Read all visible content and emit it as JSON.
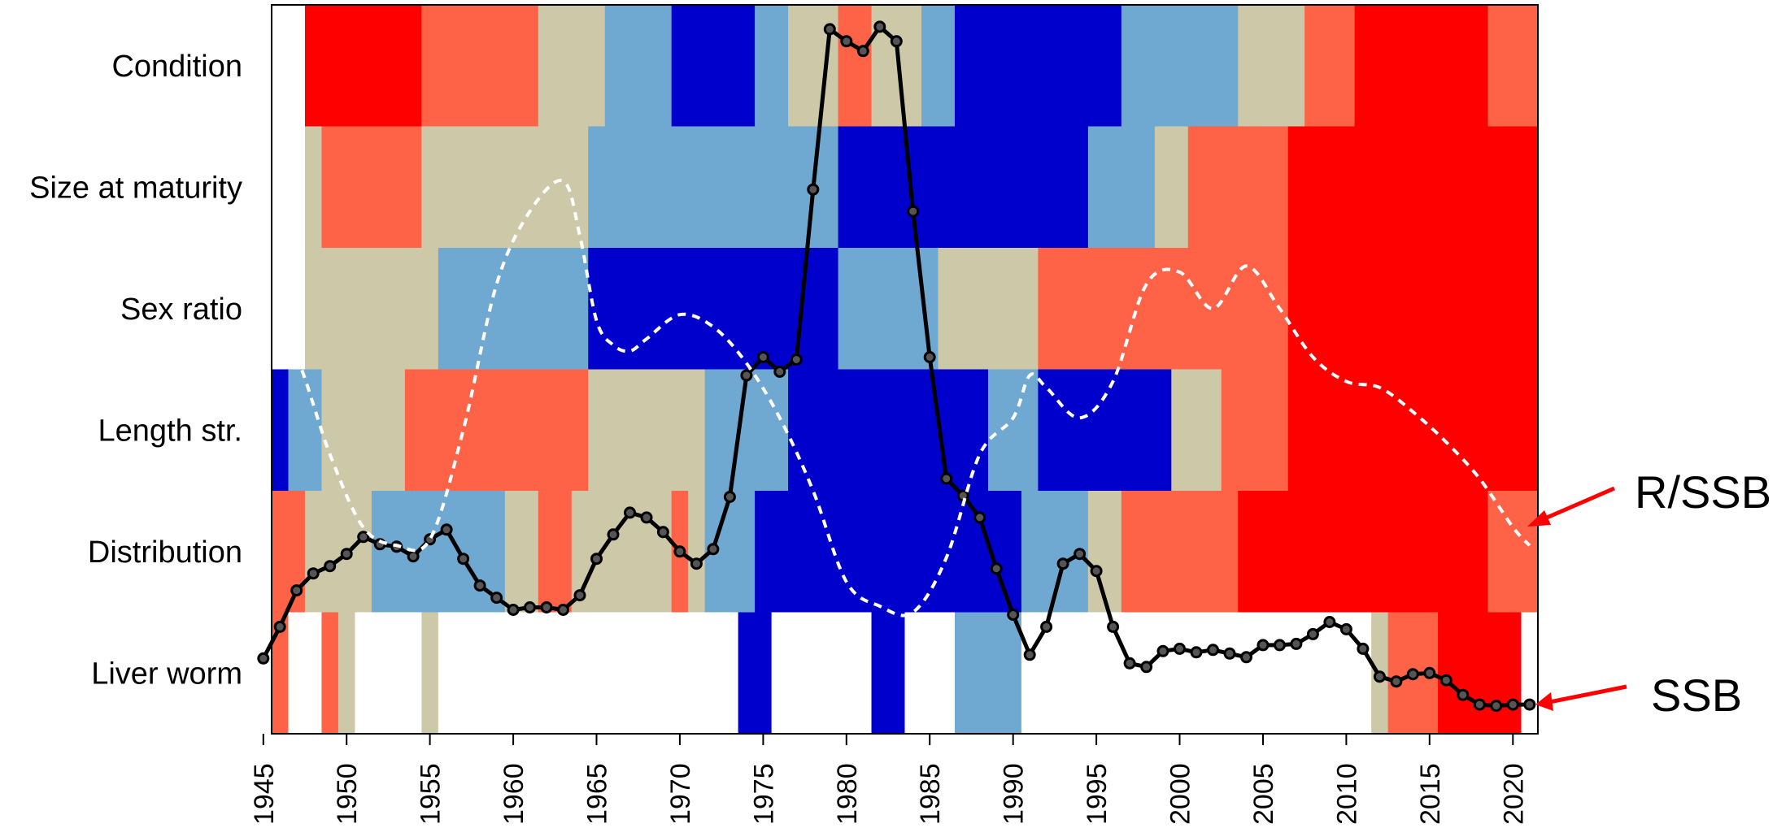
{
  "chart_data": {
    "type": "heatmap",
    "title": "",
    "xlabel": "",
    "ylabel": "",
    "xlim": [
      1945.5,
      2021.5
    ],
    "x_ticks": [
      "1945",
      "1950",
      "1955",
      "1960",
      "1965",
      "1970",
      "1975",
      "1980",
      "1985",
      "1990",
      "1995",
      "2000",
      "2005",
      "2010",
      "2015",
      "2020"
    ],
    "rows": [
      "Condition",
      "Size at maturity",
      "Sex ratio",
      "Length str.",
      "Distribution",
      "Liver worm"
    ],
    "palette": {
      "W": "#ffffff",
      "R": "#ff0000",
      "O": "#ff6347",
      "T": "#cdc8a8",
      "L": "#6fa8d0",
      "B": "#0000cd"
    },
    "cells": [
      {
        "row": "Condition",
        "segments": [
          [
            1945,
            1947,
            "W"
          ],
          [
            1947,
            1954,
            "R"
          ],
          [
            1954,
            1961,
            "O"
          ],
          [
            1961,
            1965,
            "T"
          ],
          [
            1965,
            1969,
            "L"
          ],
          [
            1969,
            1974,
            "B"
          ],
          [
            1974,
            1976,
            "L"
          ],
          [
            1976,
            1979,
            "T"
          ],
          [
            1979,
            1981,
            "O"
          ],
          [
            1981,
            1984,
            "T"
          ],
          [
            1984,
            1986,
            "L"
          ],
          [
            1986,
            1996,
            "B"
          ],
          [
            1996,
            2003,
            "L"
          ],
          [
            2003,
            2007,
            "T"
          ],
          [
            2007,
            2010,
            "O"
          ],
          [
            2010,
            2018,
            "R"
          ],
          [
            2018,
            2021,
            "O"
          ]
        ]
      },
      {
        "row": "Size at maturity",
        "segments": [
          [
            1945,
            1947,
            "W"
          ],
          [
            1947,
            1948,
            "T"
          ],
          [
            1948,
            1954,
            "O"
          ],
          [
            1954,
            1964,
            "T"
          ],
          [
            1964,
            1979,
            "L"
          ],
          [
            1979,
            1994,
            "B"
          ],
          [
            1994,
            1998,
            "L"
          ],
          [
            1998,
            2000,
            "T"
          ],
          [
            2000,
            2006,
            "O"
          ],
          [
            2006,
            2021,
            "R"
          ]
        ]
      },
      {
        "row": "Sex ratio",
        "segments": [
          [
            1945,
            1947,
            "W"
          ],
          [
            1947,
            1955,
            "T"
          ],
          [
            1955,
            1962,
            "L"
          ],
          [
            1962,
            1964,
            "L"
          ],
          [
            1964,
            1979,
            "B"
          ],
          [
            1979,
            1985,
            "L"
          ],
          [
            1985,
            1991,
            "T"
          ],
          [
            1991,
            2006,
            "O"
          ],
          [
            2006,
            2021,
            "R"
          ]
        ]
      },
      {
        "row": "Length str.",
        "segments": [
          [
            1945,
            1946,
            "B"
          ],
          [
            1946,
            1948,
            "L"
          ],
          [
            1948,
            1953,
            "T"
          ],
          [
            1953,
            1964,
            "O"
          ],
          [
            1964,
            1971,
            "T"
          ],
          [
            1971,
            1974,
            "L"
          ],
          [
            1974,
            1976,
            "L"
          ],
          [
            1976,
            1988,
            "B"
          ],
          [
            1988,
            1991,
            "L"
          ],
          [
            1991,
            1999,
            "B"
          ],
          [
            1999,
            2002,
            "T"
          ],
          [
            2002,
            2006,
            "O"
          ],
          [
            2006,
            2021,
            "R"
          ]
        ]
      },
      {
        "row": "Distribution",
        "segments": [
          [
            1945,
            1947,
            "O"
          ],
          [
            1947,
            1951,
            "T"
          ],
          [
            1951,
            1959,
            "L"
          ],
          [
            1959,
            1961,
            "T"
          ],
          [
            1961,
            1963,
            "O"
          ],
          [
            1963,
            1969,
            "T"
          ],
          [
            1969,
            1970,
            "O"
          ],
          [
            1970,
            1971,
            "T"
          ],
          [
            1971,
            1974,
            "L"
          ],
          [
            1974,
            1990,
            "B"
          ],
          [
            1990,
            1994,
            "L"
          ],
          [
            1994,
            1996,
            "T"
          ],
          [
            1996,
            2003,
            "O"
          ],
          [
            2003,
            2018,
            "R"
          ],
          [
            2018,
            2021,
            "O"
          ]
        ]
      },
      {
        "row": "Liver worm",
        "segments": [
          [
            1945,
            1946,
            "O"
          ],
          [
            1946,
            1948,
            "W"
          ],
          [
            1948,
            1949,
            "O"
          ],
          [
            1949,
            1950,
            "T"
          ],
          [
            1950,
            1954,
            "W"
          ],
          [
            1954,
            1955,
            "T"
          ],
          [
            1955,
            1973,
            "W"
          ],
          [
            1973,
            1975,
            "B"
          ],
          [
            1975,
            1981,
            "W"
          ],
          [
            1981,
            1983,
            "B"
          ],
          [
            1983,
            1986,
            "W"
          ],
          [
            1986,
            1990,
            "L"
          ],
          [
            1990,
            2011,
            "W"
          ],
          [
            2011,
            2012,
            "T"
          ],
          [
            2012,
            2015,
            "O"
          ],
          [
            2015,
            2020,
            "R"
          ],
          [
            2020,
            2021,
            "W"
          ]
        ]
      }
    ],
    "series": [
      {
        "name": "SSB",
        "style": "solid-black-with-markers",
        "x": [
          1945,
          1946,
          1947,
          1948,
          1949,
          1950,
          1951,
          1952,
          1953,
          1954,
          1955,
          1956,
          1957,
          1958,
          1959,
          1960,
          1961,
          1962,
          1963,
          1964,
          1965,
          1966,
          1967,
          1968,
          1969,
          1970,
          1971,
          1972,
          1973,
          1974,
          1975,
          1976,
          1977,
          1978,
          1979,
          1980,
          1981,
          1982,
          1983,
          1984,
          1985,
          1986,
          1987,
          1988,
          1989,
          1990,
          1991,
          1992,
          1993,
          1994,
          1995,
          1996,
          1997,
          1998,
          1999,
          2000,
          2001,
          2002,
          2003,
          2004,
          2005,
          2006,
          2007,
          2008,
          2009,
          2010,
          2011,
          2012,
          2013,
          2014,
          2015,
          2016,
          2017,
          2018,
          2019,
          2020,
          2021
        ],
        "y": [
          0.62,
          0.88,
          1.18,
          1.32,
          1.38,
          1.48,
          1.62,
          1.56,
          1.54,
          1.46,
          1.6,
          1.68,
          1.44,
          1.22,
          1.12,
          1.02,
          1.04,
          1.04,
          1.02,
          1.14,
          1.44,
          1.64,
          1.82,
          1.78,
          1.66,
          1.5,
          1.4,
          1.52,
          1.95,
          2.95,
          3.1,
          2.98,
          3.08,
          4.48,
          5.8,
          5.7,
          5.62,
          5.82,
          5.7,
          4.3,
          3.1,
          2.1,
          1.96,
          1.78,
          1.36,
          0.98,
          0.65,
          0.88,
          1.4,
          1.48,
          1.34,
          0.88,
          0.58,
          0.55,
          0.68,
          0.7,
          0.67,
          0.69,
          0.66,
          0.63,
          0.73,
          0.73,
          0.74,
          0.82,
          0.92,
          0.86,
          0.7,
          0.47,
          0.43,
          0.49,
          0.5,
          0.44,
          0.32,
          0.24,
          0.23,
          0.24,
          0.24
        ]
      },
      {
        "name": "R/SSB",
        "style": "dashed-white",
        "x": [
          1945,
          1947,
          1949,
          1951,
          1953,
          1955,
          1957,
          1959,
          1961,
          1963,
          1964,
          1965,
          1966,
          1967,
          1968,
          1970,
          1972,
          1974,
          1976,
          1978,
          1980,
          1982,
          1984,
          1986,
          1988,
          1990,
          1991,
          1992,
          1994,
          1996,
          1998,
          2000,
          2002,
          2004,
          2006,
          2008,
          2010,
          2012,
          2014,
          2016,
          2018,
          2020,
          2021
        ],
        "y": [
          3.5,
          3.1,
          2.3,
          1.7,
          1.55,
          1.6,
          2.5,
          3.7,
          4.3,
          4.55,
          4.1,
          3.4,
          3.2,
          3.15,
          3.25,
          3.45,
          3.35,
          3.05,
          2.6,
          2.0,
          1.25,
          1.05,
          1.0,
          1.45,
          2.3,
          2.6,
          2.95,
          2.85,
          2.6,
          2.9,
          3.7,
          3.8,
          3.5,
          3.85,
          3.5,
          3.1,
          2.9,
          2.85,
          2.65,
          2.4,
          2.1,
          1.7,
          1.55
        ]
      }
    ],
    "ylim": [
      0,
      6
    ],
    "annotations": [
      "R/SSB",
      "SSB"
    ]
  }
}
